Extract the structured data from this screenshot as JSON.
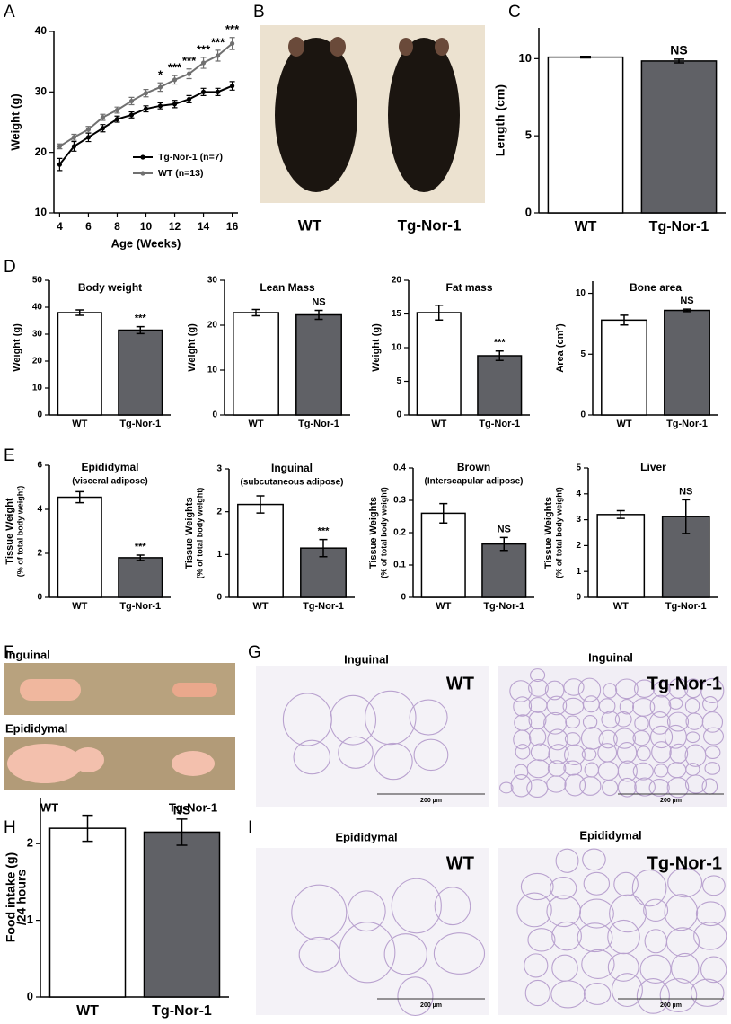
{
  "chart_data": [
    {
      "panel": "A",
      "type": "line",
      "x": [
        4,
        5,
        6,
        7,
        8,
        9,
        10,
        11,
        12,
        13,
        14,
        15,
        16
      ],
      "xlim": [
        3.6,
        16.4
      ],
      "xticks": [
        4,
        6,
        8,
        10,
        12,
        14,
        16
      ],
      "ylim": [
        10,
        40
      ],
      "yticks": [
        10,
        20,
        30,
        40
      ],
      "xlabel": "Age (Weeks)",
      "ylabel": [
        "Weight (g)"
      ],
      "series": [
        {
          "name": "Tg-Nor-1 (n=7)",
          "color": "#000000",
          "values": [
            18,
            21,
            22.5,
            24,
            25.5,
            26.2,
            27.2,
            27.7,
            28,
            28.8,
            30,
            30,
            31
          ],
          "errors": [
            1,
            0.8,
            0.7,
            0.6,
            0.5,
            0.5,
            0.5,
            0.5,
            0.6,
            0.6,
            0.6,
            0.6,
            0.7
          ]
        },
        {
          "name": "WT  (n=13)",
          "color": "#707070",
          "values": [
            21,
            22.5,
            23.8,
            25.8,
            27,
            28.5,
            29.8,
            30.8,
            32,
            33,
            34.8,
            36,
            38
          ],
          "errors": [
            0.4,
            0.5,
            0.5,
            0.5,
            0.5,
            0.6,
            0.6,
            0.7,
            0.7,
            0.8,
            0.9,
            0.9,
            1
          ]
        }
      ],
      "annotations": [
        {
          "x": 11,
          "text": "*"
        },
        {
          "x": 12,
          "text": "***"
        },
        {
          "x": 13,
          "text": "***"
        },
        {
          "x": 14,
          "text": "***"
        },
        {
          "x": 15,
          "text": "***"
        },
        {
          "x": 16,
          "text": "***"
        }
      ]
    },
    {
      "panel": "C",
      "type": "bar",
      "categories": [
        "WT",
        "Tg-Nor-1"
      ],
      "values": [
        10.1,
        9.85
      ],
      "errors": [
        0.05,
        0.12
      ],
      "colors": [
        "#ffffff",
        "#606166"
      ],
      "ylim": [
        0,
        12
      ],
      "yticks": [
        0,
        5,
        10
      ],
      "ylabel": [
        "Length (cm)"
      ],
      "annotations": [
        {
          "x": "Tg-Nor-1",
          "text": "NS"
        }
      ]
    },
    {
      "panel": "D",
      "type": "bar",
      "title": "Body weight",
      "categories": [
        "WT",
        "Tg-Nor-1"
      ],
      "values": [
        38,
        31.5
      ],
      "errors": [
        1,
        1.3
      ],
      "colors": [
        "#ffffff",
        "#606166"
      ],
      "ylim": [
        0,
        50
      ],
      "yticks": [
        0,
        10,
        20,
        30,
        40,
        50
      ],
      "ylabel": [
        "Weight (g)"
      ],
      "annotations": [
        {
          "x": "Tg-Nor-1",
          "text": "***"
        }
      ]
    },
    {
      "type": "bar",
      "title": "Lean Mass",
      "categories": [
        "WT",
        "Tg-Nor-1"
      ],
      "values": [
        22.8,
        22.3
      ],
      "errors": [
        0.7,
        1
      ],
      "colors": [
        "#ffffff",
        "#606166"
      ],
      "ylim": [
        0,
        30
      ],
      "yticks": [
        0,
        10,
        20,
        30
      ],
      "ylabel": [
        "Weight (g)"
      ],
      "annotations": [
        {
          "x": "Tg-Nor-1",
          "text": "NS"
        }
      ]
    },
    {
      "type": "bar",
      "title": "Fat mass",
      "categories": [
        "WT",
        "Tg-Nor-1"
      ],
      "values": [
        15.2,
        8.8
      ],
      "errors": [
        1.1,
        0.7
      ],
      "colors": [
        "#ffffff",
        "#606166"
      ],
      "ylim": [
        0,
        20
      ],
      "yticks": [
        0,
        5,
        10,
        15,
        20
      ],
      "ylabel": [
        "Weight (g)"
      ],
      "annotations": [
        {
          "x": "Tg-Nor-1",
          "text": "***"
        }
      ]
    },
    {
      "type": "bar",
      "title": "Bone area",
      "categories": [
        "WT",
        "Tg-Nor-1"
      ],
      "values": [
        7.8,
        8.6
      ],
      "errors": [
        0.4,
        0.1
      ],
      "colors": [
        "#ffffff",
        "#606166"
      ],
      "ylim": [
        0,
        11
      ],
      "yticks": [
        0,
        5,
        10
      ],
      "ylabel": [
        "Area (cm²)"
      ],
      "annotations": [
        {
          "x": "Tg-Nor-1",
          "text": "NS"
        }
      ]
    },
    {
      "panel": "E",
      "type": "bar",
      "title": "Epididymal",
      "subtitle": "(visceral adipose)",
      "categories": [
        "WT",
        "Tg-Nor-1"
      ],
      "values": [
        4.55,
        1.8
      ],
      "errors": [
        0.25,
        0.12
      ],
      "colors": [
        "#ffffff",
        "#606166"
      ],
      "ylim": [
        0,
        6
      ],
      "yticks": [
        0,
        2,
        4,
        6
      ],
      "ylabel": [
        "Tissue Weight",
        "(% of total body weight)"
      ],
      "annotations": [
        {
          "x": "Tg-Nor-1",
          "text": "***"
        }
      ]
    },
    {
      "type": "bar",
      "title": "Inguinal",
      "subtitle": "(subcutaneous adipose)",
      "categories": [
        "WT",
        "Tg-Nor-1"
      ],
      "values": [
        2.17,
        1.15
      ],
      "errors": [
        0.2,
        0.2
      ],
      "colors": [
        "#ffffff",
        "#606166"
      ],
      "ylim": [
        0,
        3
      ],
      "yticks": [
        0,
        1,
        2,
        3
      ],
      "ylabel": [
        "Tissue Weights",
        "(% of total body weight)"
      ],
      "annotations": [
        {
          "x": "Tg-Nor-1",
          "text": "***"
        }
      ]
    },
    {
      "type": "bar",
      "title": "Brown",
      "subtitle": "(Interscapular adipose)",
      "categories": [
        "WT",
        "Tg-Nor-1"
      ],
      "values": [
        0.26,
        0.165
      ],
      "errors": [
        0.03,
        0.02
      ],
      "colors": [
        "#ffffff",
        "#606166"
      ],
      "ylim": [
        0,
        0.4
      ],
      "yticks": [
        0,
        0.1,
        0.2,
        0.3,
        0.4
      ],
      "ylabel": [
        "Tissue Weights",
        "(% of total body weight)"
      ],
      "annotations": [
        {
          "x": "Tg-Nor-1",
          "text": "NS"
        }
      ]
    },
    {
      "type": "bar",
      "title": "Liver",
      "categories": [
        "WT",
        "Tg-Nor-1"
      ],
      "values": [
        3.2,
        3.12
      ],
      "errors": [
        0.15,
        0.65
      ],
      "colors": [
        "#ffffff",
        "#606166"
      ],
      "ylim": [
        0,
        5
      ],
      "yticks": [
        0,
        1,
        2,
        3,
        4,
        5
      ],
      "ylabel": [
        "Tissue Weights",
        "(% of total body weight)"
      ],
      "annotations": [
        {
          "x": "Tg-Nor-1",
          "text": "NS"
        }
      ]
    },
    {
      "panel": "H",
      "type": "bar",
      "categories": [
        "WT",
        "Tg-Nor-1"
      ],
      "values": [
        2.2,
        2.15
      ],
      "errors": [
        0.17,
        0.17
      ],
      "colors": [
        "#ffffff",
        "#606166"
      ],
      "ylim": [
        0,
        2.6
      ],
      "yticks": [
        0,
        1,
        2
      ],
      "ylabel": [
        "Food intake (g)",
        "/24 hours"
      ],
      "annotations": [
        {
          "x": "Tg-Nor-1",
          "text": "NS"
        }
      ]
    }
  ],
  "photos": [
    {
      "panel": "B",
      "labels": [
        "WT",
        "Tg-Nor-1"
      ]
    },
    {
      "panel": "F",
      "tissues": [
        "Inguinal",
        "Epididymal"
      ],
      "labels": [
        "WT",
        "Tg-Nor-1"
      ]
    },
    {
      "panel": "G",
      "titles": [
        "Inguinal",
        "Inguinal"
      ],
      "labels": [
        "WT",
        "Tg-Nor-1"
      ],
      "scale_bars": [
        "200 µm",
        "200 µm"
      ]
    },
    {
      "panel": "I",
      "titles": [
        "Epididymal",
        "Epididymal"
      ],
      "labels": [
        "WT",
        "Tg-Nor-1"
      ],
      "scale_bars": [
        "200 µm",
        "200 µm"
      ]
    }
  ]
}
